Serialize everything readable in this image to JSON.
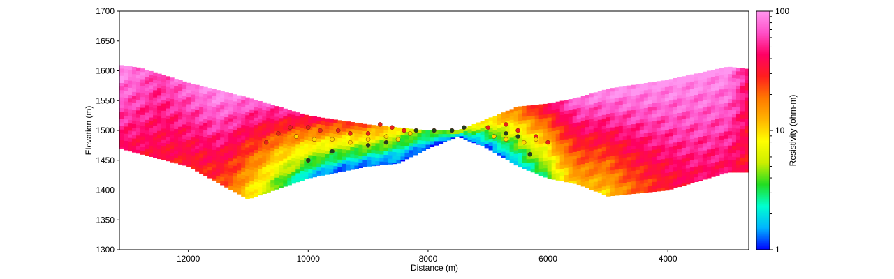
{
  "chart_data": {
    "type": "heatmap",
    "title": "",
    "xlabel": "Distance (m)",
    "ylabel": "Elevation (m)",
    "x_reversed": true,
    "xlim": [
      13150,
      2650
    ],
    "ylim": [
      1300,
      1700
    ],
    "x_ticks": [
      12000,
      10000,
      8000,
      6000,
      4000
    ],
    "y_ticks": [
      1300,
      1350,
      1400,
      1450,
      1500,
      1550,
      1600,
      1650,
      1700
    ],
    "grid": false,
    "colorbar": {
      "label": "Resistivity (ohm-m)",
      "scale": "log",
      "range": [
        1,
        100
      ],
      "ticks": [
        "1",
        "10",
        "100"
      ],
      "colors": [
        "#0000ff",
        "#00b4ff",
        "#00ffd0",
        "#22dd22",
        "#ccee00",
        "#ffff00",
        "#ffb400",
        "#ff7800",
        "#ff1e1e",
        "#ff0064",
        "#ff50c8",
        "#ff96f0"
      ]
    },
    "surface_profile": {
      "x": [
        13150,
        12800,
        12000,
        11000,
        10000,
        9000,
        8500,
        8000,
        7500,
        7000,
        6500,
        6000,
        5500,
        5000,
        4000,
        3000,
        2650
      ],
      "elevation": [
        1610,
        1605,
        1580,
        1555,
        1525,
        1510,
        1505,
        1500,
        1500,
        1520,
        1540,
        1545,
        1555,
        1570,
        1585,
        1607,
        1603
      ]
    },
    "section_bottom": {
      "x": [
        13150,
        12000,
        11000,
        10000,
        9000,
        8500,
        8000,
        7500,
        7000,
        6500,
        6000,
        5500,
        5000,
        4000,
        3000,
        2650
      ],
      "elevation": [
        1470,
        1440,
        1385,
        1420,
        1440,
        1445,
        1470,
        1490,
        1470,
        1440,
        1420,
        1410,
        1390,
        1400,
        1430,
        1430
      ]
    },
    "resistivity_profile": {
      "x": [
        13150,
        12500,
        12000,
        11500,
        11000,
        10500,
        10000,
        9500,
        9000,
        8500,
        8000,
        7500,
        7000,
        6500,
        6000,
        5500,
        5000,
        4500,
        4000,
        3500,
        3000,
        2650
      ],
      "near_surface_ohm_m": [
        100,
        60,
        80,
        100,
        80,
        60,
        40,
        30,
        20,
        8,
        4,
        4,
        10,
        20,
        40,
        80,
        100,
        100,
        100,
        100,
        100,
        40
      ],
      "at_depth_ohm_m": [
        40,
        35,
        30,
        25,
        8,
        3,
        1.5,
        1,
        1,
        1,
        1,
        1,
        1,
        1.5,
        3,
        12,
        10,
        20,
        30,
        40,
        40,
        30
      ]
    },
    "markers": [
      {
        "name": "red",
        "color": "#e8201a",
        "x": [
          10700,
          10500,
          10300,
          10000,
          9800,
          9500,
          9300,
          9000,
          8800,
          8600,
          8400,
          7000,
          6700,
          6500,
          6200,
          6000
        ],
        "elevation": [
          1480,
          1495,
          1505,
          1505,
          1500,
          1500,
          1495,
          1495,
          1510,
          1505,
          1500,
          1505,
          1510,
          1500,
          1490,
          1480
        ]
      },
      {
        "name": "yellow",
        "color": "#ffd700",
        "x": [
          10200,
          9900,
          9600,
          9300,
          9000,
          8700,
          8500,
          8300,
          6900,
          6700,
          6400,
          6200
        ],
        "elevation": [
          1490,
          1485,
          1485,
          1480,
          1485,
          1490,
          1485,
          1495,
          1490,
          1485,
          1480,
          1485
        ]
      },
      {
        "name": "dark",
        "color": "#204020",
        "x": [
          10000,
          9600,
          9000,
          8700,
          8200,
          7900,
          7600,
          7400,
          6700,
          6500,
          6300
        ],
        "elevation": [
          1450,
          1465,
          1475,
          1480,
          1500,
          1500,
          1500,
          1505,
          1495,
          1490,
          1460
        ]
      }
    ]
  }
}
